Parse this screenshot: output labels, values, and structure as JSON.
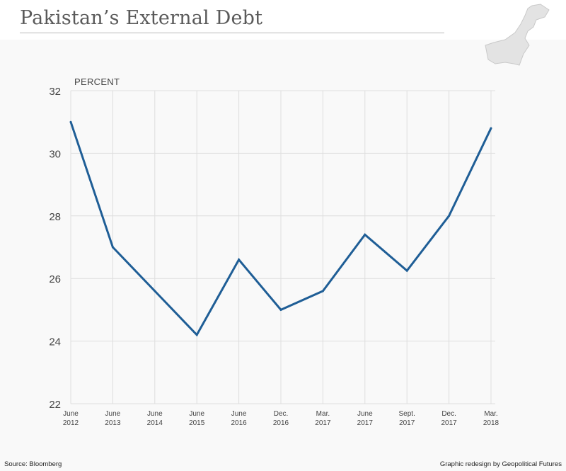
{
  "header": {
    "title": "Pakistan’s External Debt"
  },
  "footer": {
    "source": "Source: Bloomberg",
    "credit": "Graphic redesign by Geopolitical Futures"
  },
  "colors": {
    "line": "#1f5e96",
    "grid": "#dedede",
    "axis": "#444444",
    "map_fill": "#e3e3e3"
  },
  "icons": {
    "map": "pakistan-map-icon"
  },
  "chart_data": {
    "type": "line",
    "title": "Pakistan’s External Debt",
    "ylabel": "PERCENT",
    "xlabel": "",
    "ylim": [
      22,
      32
    ],
    "yticks": [
      22,
      24,
      26,
      28,
      30,
      32
    ],
    "grid": true,
    "categories": [
      [
        "June",
        "2012"
      ],
      [
        "June",
        "2013"
      ],
      [
        "June",
        "2014"
      ],
      [
        "June",
        "2015"
      ],
      [
        "June",
        "2016"
      ],
      [
        "Dec.",
        "2016"
      ],
      [
        "Mar.",
        "2017"
      ],
      [
        "June",
        "2017"
      ],
      [
        "Sept.",
        "2017"
      ],
      [
        "Dec.",
        "2017"
      ],
      [
        "Mar.",
        "2018"
      ]
    ],
    "series": [
      {
        "values": [
          31.0,
          27.0,
          25.6,
          24.2,
          26.6,
          25.0,
          25.6,
          27.4,
          26.25,
          28.0,
          30.8
        ]
      }
    ]
  }
}
